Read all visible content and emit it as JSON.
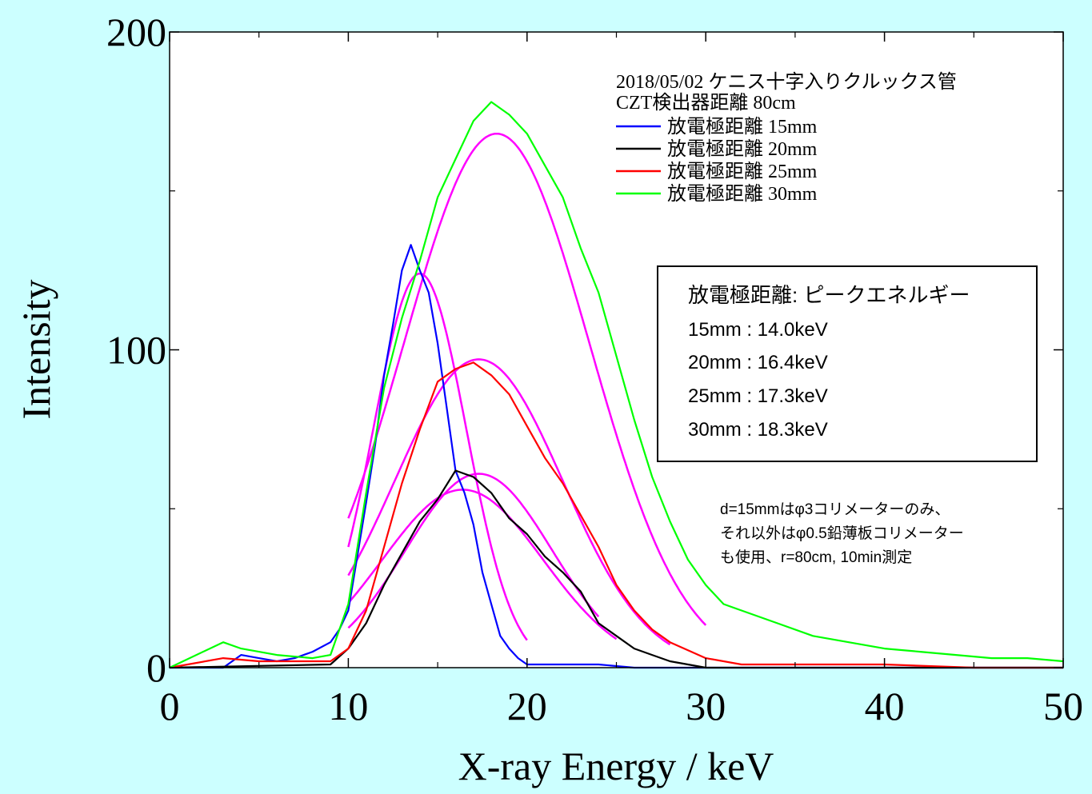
{
  "chart_data": {
    "type": "line",
    "xlabel": "X-ray Energy / keV",
    "ylabel": "Intensity",
    "xlim": [
      0,
      50
    ],
    "ylim": [
      0,
      200
    ],
    "x_ticks": [
      0,
      10,
      20,
      30,
      40,
      50
    ],
    "y_ticks": [
      0,
      100,
      200
    ],
    "grid": false,
    "legend": {
      "placement": "top-right",
      "header": [
        "2018/05/02 ケニス十字入りクルックス管",
        "CZT検出器距離 80cm"
      ],
      "entries": [
        "放電極距離 15mm",
        "放電極距離 20mm",
        "放電極距離 25mm",
        "放電極距離 30mm"
      ]
    },
    "series": [
      {
        "name": "放電極距離 15mm",
        "color": "#0000ff",
        "x": [
          0,
          3,
          4,
          5,
          6,
          7,
          8,
          9,
          9.5,
          10,
          10.5,
          11,
          11.5,
          12,
          12.5,
          13,
          13.5,
          14,
          14.5,
          15,
          15.5,
          16,
          16.5,
          17,
          17.5,
          18,
          18.5,
          19,
          19.5,
          20,
          21,
          22,
          24,
          26,
          50
        ],
        "y": [
          0,
          0,
          4,
          3,
          2,
          3,
          5,
          8,
          12,
          18,
          35,
          52,
          70,
          92,
          108,
          125,
          133,
          125,
          118,
          102,
          82,
          62,
          55,
          45,
          30,
          20,
          10,
          6,
          3,
          1,
          1,
          1,
          1,
          0,
          0
        ]
      },
      {
        "name": "放電極距離 20mm",
        "color": "#000000",
        "x": [
          0,
          9,
          10,
          11,
          12,
          13,
          14,
          15,
          16,
          17,
          18,
          19,
          20,
          21,
          22,
          23,
          24,
          25,
          26,
          27,
          28,
          29,
          30,
          50
        ],
        "y": [
          0,
          1,
          6,
          14,
          26,
          36,
          46,
          53,
          62,
          60,
          55,
          47,
          42,
          35,
          30,
          24,
          14,
          10,
          6,
          4,
          2,
          1,
          0,
          0
        ]
      },
      {
        "name": "放電極距離 25mm",
        "color": "#ff0000",
        "x": [
          0,
          3,
          5,
          8,
          9,
          10,
          11,
          12,
          13,
          14,
          15,
          16,
          17,
          18,
          19,
          20,
          21,
          22,
          23,
          24,
          25,
          26,
          27,
          28,
          30,
          32,
          35,
          40,
          45,
          50
        ],
        "y": [
          0,
          3,
          2,
          2,
          2,
          6,
          18,
          38,
          58,
          75,
          90,
          94,
          96,
          92,
          86,
          76,
          66,
          58,
          48,
          38,
          26,
          18,
          12,
          8,
          3,
          1,
          1,
          1,
          0,
          0
        ]
      },
      {
        "name": "放電極距離 30mm",
        "color": "#00ff00",
        "x": [
          0,
          3,
          4,
          6,
          8,
          9,
          10,
          11,
          12,
          13,
          14,
          15,
          16,
          17,
          18,
          19,
          20,
          21,
          22,
          23,
          24,
          25,
          26,
          27,
          28,
          29,
          30,
          31,
          32,
          34,
          36,
          38,
          40,
          42,
          44,
          46,
          48,
          50
        ],
        "y": [
          0,
          8,
          6,
          4,
          3,
          4,
          20,
          55,
          88,
          110,
          128,
          148,
          160,
          172,
          178,
          174,
          168,
          158,
          148,
          132,
          118,
          98,
          78,
          60,
          46,
          34,
          26,
          20,
          18,
          14,
          10,
          8,
          6,
          5,
          4,
          3,
          3,
          2
        ]
      }
    ],
    "fit_curves": {
      "color": "#ff00ff",
      "peaks": [
        {
          "center": 14.0,
          "height": 124,
          "sigma": 2.6,
          "xrange": [
            10,
            20
          ]
        },
        {
          "center": 16.4,
          "height": 56,
          "sigma": 4.5,
          "xrange": [
            10,
            25
          ]
        },
        {
          "center": 17.3,
          "height": 61,
          "sigma": 4.1,
          "xrange": [
            10,
            24
          ]
        },
        {
          "center": 17.3,
          "height": 97,
          "sigma": 4.7,
          "xrange": [
            10,
            28
          ]
        },
        {
          "center": 18.3,
          "height": 168,
          "sigma": 5.2,
          "xrange": [
            10,
            30
          ]
        }
      ]
    },
    "annotations": {
      "peak_box": {
        "title": "放電極距離: ピークエネルギー",
        "rows": [
          "15mm : 14.0keV",
          "20mm : 16.4keV",
          "25mm : 17.3keV",
          "30mm : 18.3keV"
        ]
      },
      "note": [
        "d=15mmはφ3コリメーターのみ、",
        "それ以外はφ0.5鉛薄板コリメーター",
        "も使用、r=80cm, 10min測定"
      ]
    },
    "colors": {
      "background": "#ccffff",
      "plot_area": "#ffffff"
    }
  }
}
